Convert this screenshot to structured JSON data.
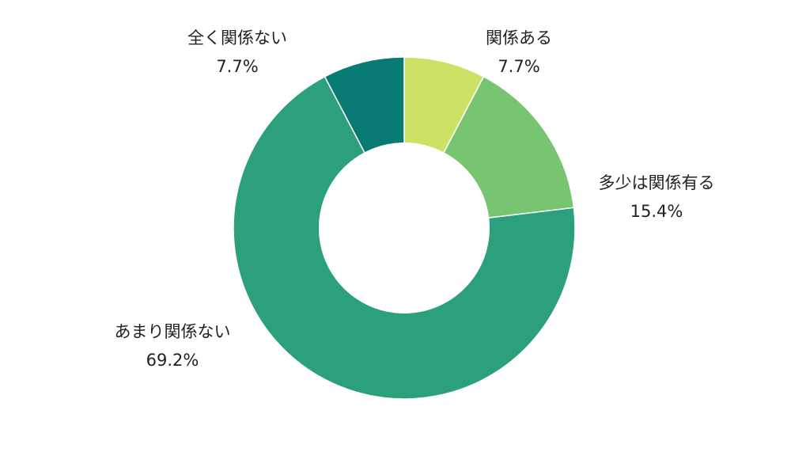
{
  "chart_data": {
    "type": "pie",
    "donut": true,
    "categories": [
      "関係ある",
      "多少は関係有る",
      "あまり関係ない",
      "全く関係ない"
    ],
    "values": [
      7.7,
      15.4,
      69.2,
      7.7
    ],
    "value_labels": [
      "7.7%",
      "15.4%",
      "69.2%",
      "7.7%"
    ],
    "colors": [
      "#cbe265",
      "#77c571",
      "#2ca07c",
      "#087a74"
    ],
    "start_angle_deg": 0,
    "direction": "clockwise",
    "legend": "none"
  }
}
